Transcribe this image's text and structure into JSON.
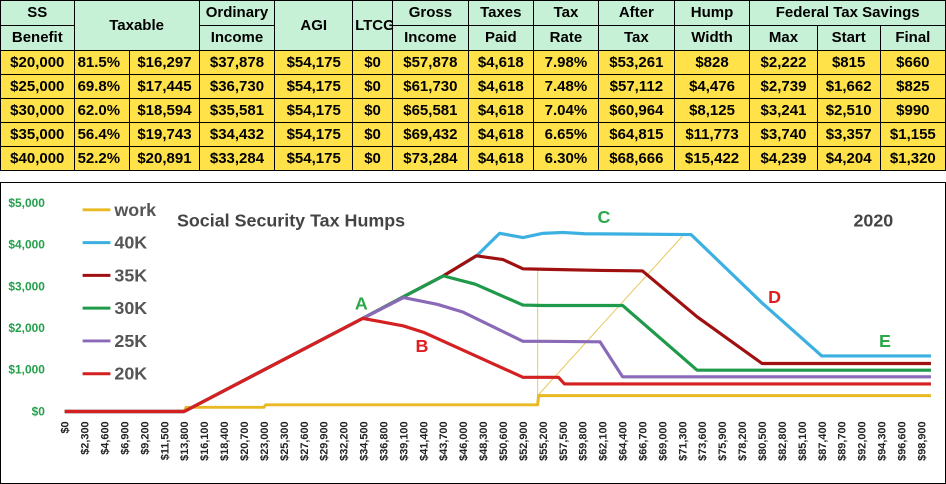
{
  "table": {
    "headers_top": [
      "SS",
      "Taxable",
      "Ordinary",
      "AGI",
      "LTCG",
      "Gross",
      "Taxes",
      "Tax",
      "After",
      "Hump",
      "Federal Tax Savings"
    ],
    "headers_bottom": [
      "Benefit",
      "Income",
      "Income",
      "Paid",
      "Rate",
      "Tax",
      "Width",
      "Max",
      "Start",
      "Final"
    ],
    "rows": [
      [
        "$20,000",
        "81.5%",
        "$16,297",
        "$37,878",
        "$54,175",
        "$0",
        "$57,878",
        "$4,618",
        "7.98%",
        "$53,261",
        "$828",
        "$2,222",
        "$815",
        "$660"
      ],
      [
        "$25,000",
        "69.8%",
        "$17,445",
        "$36,730",
        "$54,175",
        "$0",
        "$61,730",
        "$4,618",
        "7.48%",
        "$57,112",
        "$4,476",
        "$2,739",
        "$1,662",
        "$825"
      ],
      [
        "$30,000",
        "62.0%",
        "$18,594",
        "$35,581",
        "$54,175",
        "$0",
        "$65,581",
        "$4,618",
        "7.04%",
        "$60,964",
        "$8,125",
        "$3,241",
        "$2,510",
        "$990"
      ],
      [
        "$35,000",
        "56.4%",
        "$19,743",
        "$34,432",
        "$54,175",
        "$0",
        "$69,432",
        "$4,618",
        "6.65%",
        "$64,815",
        "$11,773",
        "$3,740",
        "$3,357",
        "$1,155"
      ],
      [
        "$40,000",
        "52.2%",
        "$20,891",
        "$33,284",
        "$54,175",
        "$0",
        "$73,284",
        "$4,618",
        "6.30%",
        "$68,666",
        "$15,422",
        "$4,239",
        "$4,204",
        "$1,320"
      ]
    ]
  },
  "chart_data": {
    "type": "line",
    "title": "Social Security Tax Humps",
    "year_label": "2020",
    "ylim": [
      0,
      5000
    ],
    "xlim": [
      0,
      100000
    ],
    "y_ticks": [
      "$0",
      "$1,000",
      "$2,000",
      "$3,000",
      "$4,000",
      "$5,000"
    ],
    "y_tick_values": [
      0,
      1000,
      2000,
      3000,
      4000,
      5000
    ],
    "x_ticks": [
      "$0",
      "$2,300",
      "$4,600",
      "$6,900",
      "$9,200",
      "$11,500",
      "$13,800",
      "$16,100",
      "$18,400",
      "$20,700",
      "$23,000",
      "$25,300",
      "$27,600",
      "$29,900",
      "$32,200",
      "$34,500",
      "$36,800",
      "$39,100",
      "$41,400",
      "$43,700",
      "$46,000",
      "$48,300",
      "$50,600",
      "$52,900",
      "$55,200",
      "$57,500",
      "$59,800",
      "$62,100",
      "$64,400",
      "$66,700",
      "$69,000",
      "$71,300",
      "$73,600",
      "$75,900",
      "$78,200",
      "$80,500",
      "$82,800",
      "$85,100",
      "$87,400",
      "$89,700",
      "$92,000",
      "$94,300",
      "$96,600",
      "$98,900"
    ],
    "annotations": [
      "A",
      "B",
      "C",
      "D",
      "E"
    ],
    "series": [
      {
        "name": "work",
        "color": "#e8b923",
        "x": [
          0,
          13800,
          14000,
          23000,
          23200,
          54600,
          54700,
          100000
        ],
        "y": [
          0,
          0,
          100,
          100,
          160,
          160,
          380,
          380
        ]
      },
      {
        "name": "40K",
        "color": "#3cb0e0",
        "x": [
          0,
          13800,
          34400,
          39100,
          43700,
          47500,
          50200,
          52900,
          55200,
          57500,
          60000,
          72300,
          80500,
          87400,
          100000
        ],
        "y": [
          0,
          0,
          2230,
          2750,
          3250,
          3720,
          4270,
          4170,
          4270,
          4290,
          4260,
          4240,
          2600,
          1330,
          1330
        ]
      },
      {
        "name": "35K",
        "color": "#a01010",
        "x": [
          0,
          13800,
          34400,
          39100,
          43700,
          47500,
          50600,
          52900,
          55200,
          62000,
          66700,
          73000,
          80500,
          100000
        ],
        "y": [
          0,
          0,
          2230,
          2750,
          3250,
          3730,
          3640,
          3420,
          3410,
          3380,
          3370,
          2270,
          1150,
          1150
        ]
      },
      {
        "name": "30K",
        "color": "#1f9a4a",
        "x": [
          0,
          13800,
          34400,
          39100,
          43700,
          47400,
          52900,
          55200,
          64400,
          73000,
          100000
        ],
        "y": [
          0,
          0,
          2230,
          2750,
          3250,
          3050,
          2550,
          2540,
          2540,
          990,
          990
        ]
      },
      {
        "name": "25K",
        "color": "#8a6ab8",
        "x": [
          0,
          13800,
          34400,
          39100,
          43000,
          46000,
          52900,
          55200,
          61800,
          64400,
          100000
        ],
        "y": [
          0,
          0,
          2230,
          2730,
          2570,
          2380,
          1680,
          1680,
          1670,
          830,
          830
        ]
      },
      {
        "name": "20K",
        "color": "#d42020",
        "x": [
          0,
          13800,
          34400,
          36800,
          39100,
          41400,
          52900,
          55200,
          57000,
          57700,
          100000
        ],
        "y": [
          0,
          0,
          2230,
          2140,
          2050,
          1900,
          820,
          820,
          820,
          660,
          660
        ]
      }
    ]
  }
}
